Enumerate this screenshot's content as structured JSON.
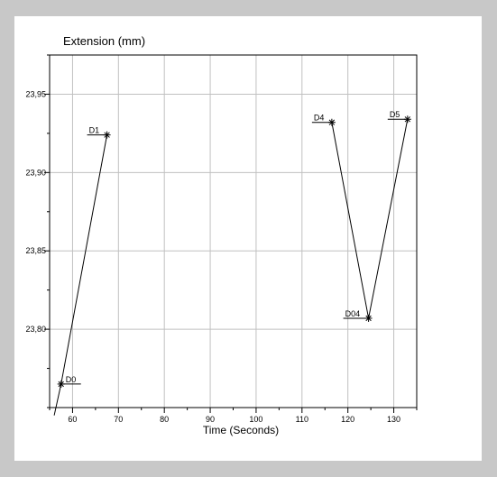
{
  "chart_data": {
    "type": "line",
    "ylabel": "Extension (mm)",
    "xlabel": "Time (Seconds)",
    "xlim": [
      55,
      135
    ],
    "ylim": [
      23.75,
      23.975
    ],
    "x_ticks": [
      60,
      70,
      80,
      90,
      100,
      110,
      120,
      130
    ],
    "x_tick_labels": [
      "60",
      "70",
      "80",
      "90",
      "100",
      "110",
      "120",
      "130"
    ],
    "x_minor_step": 5,
    "y_ticks": [
      23.8,
      23.85,
      23.9,
      23.95
    ],
    "y_tick_labels": [
      "23,80",
      "23,85",
      "23,90",
      "23,95"
    ],
    "y_minor_step": 0.025,
    "grid": true,
    "lines": [
      {
        "x": [
          56,
          57.5,
          67.5
        ],
        "y": [
          23.745,
          23.765,
          23.924
        ]
      },
      {
        "x": [
          116.5,
          124.5,
          133
        ],
        "y": [
          23.932,
          23.807,
          23.934
        ]
      }
    ],
    "points": [
      {
        "label": "D0",
        "x": 57.5,
        "y": 23.765,
        "side": "right"
      },
      {
        "label": "D1",
        "x": 67.5,
        "y": 23.924,
        "side": "left"
      },
      {
        "label": "D4",
        "x": 116.5,
        "y": 23.932,
        "side": "left"
      },
      {
        "label": "D04",
        "x": 124.5,
        "y": 23.807,
        "side": "left"
      },
      {
        "label": "D5",
        "x": 133,
        "y": 23.934,
        "side": "left"
      }
    ],
    "line_color": "#000000",
    "grid_color": "#c0c0c0"
  }
}
